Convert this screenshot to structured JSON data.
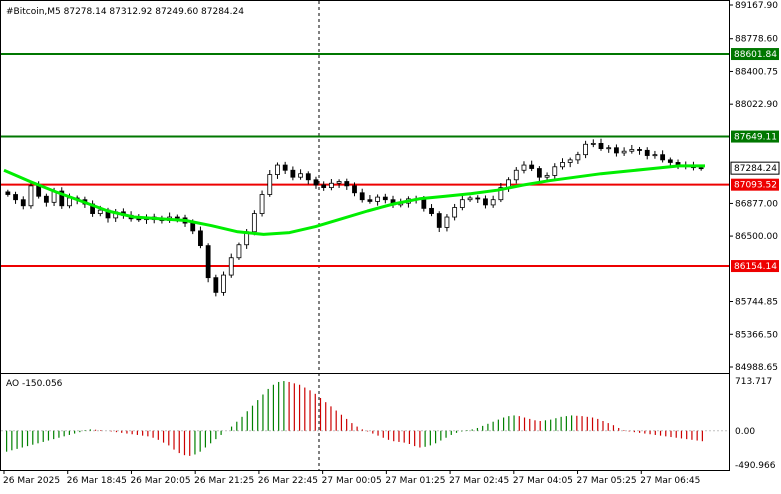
{
  "header": {
    "main_title": "#Bitcoin,M5  87278.14 87312.92 87249.60 87284.24",
    "ao_title": "AO -150.056"
  },
  "chart_data": [
    {
      "type": "candlestick",
      "symbol": "#Bitcoin",
      "timeframe": "M5",
      "ohlc": {
        "open": 87278.14,
        "high": 87312.92,
        "low": 87249.6,
        "close": 87284.24
      },
      "ylim": [
        84988.65,
        89167.9
      ],
      "y_ticks": [
        89167.9,
        88778.6,
        88400.75,
        88022.9,
        87649.11,
        87284.24,
        86877.0,
        86500.0,
        86154.14,
        85744.85,
        85366.5,
        84988.65
      ],
      "y_tick_labels": [
        "89167.90",
        "88778.60",
        "88400.75",
        "88022.90",
        "86877.00",
        "86500.00",
        "85744.85",
        "85366.50",
        "84988.65"
      ],
      "x_tick_labels": [
        "26 Mar 2025",
        "26 Mar 18:45",
        "26 Mar 20:05",
        "26 Mar 21:25",
        "26 Mar 22:45",
        "27 Mar 00:05",
        "27 Mar 01:25",
        "27 Mar 02:45",
        "27 Mar 04:05",
        "27 Mar 05:25",
        "27 Mar 06:45"
      ],
      "levels": [
        {
          "value": 88601.84,
          "label": "88601.84",
          "color": "#007700"
        },
        {
          "value": 87649.11,
          "label": "87649.11",
          "color": "#007700"
        },
        {
          "value": 87093.52,
          "label": "87093.52",
          "color": "#ee0000"
        },
        {
          "value": 86154.14,
          "label": "86154.14",
          "color": "#ee0000"
        }
      ],
      "current_price": {
        "value": 87284.24,
        "label": "87284.24"
      },
      "close_series": [
        86980,
        86920,
        86850,
        87080,
        86960,
        86890,
        87020,
        86850,
        86940,
        86920,
        86870,
        86760,
        86800,
        86710,
        86780,
        86740,
        86700,
        86690,
        86720,
        86690,
        86680,
        86720,
        86710,
        86650,
        86560,
        86390,
        86020,
        85850,
        86050,
        86250,
        86400,
        86550,
        86760,
        86980,
        87210,
        87320,
        87260,
        87180,
        87220,
        87150,
        87090,
        87060,
        87110,
        87130,
        87080,
        87000,
        86920,
        86900,
        86950,
        86920,
        86860,
        86880,
        86930,
        86920,
        86820,
        86760,
        86600,
        86720,
        86830,
        86920,
        86940,
        86930,
        86860,
        86920,
        87060,
        87150,
        87260,
        87320,
        87280,
        87180,
        87200,
        87300,
        87350,
        87380,
        87440,
        87560,
        87570,
        87510,
        87520,
        87460,
        87480,
        87500,
        87490,
        87430,
        87440,
        87380,
        87350,
        87320,
        87310,
        87290,
        87280
      ],
      "sma_series": [
        87260,
        87130,
        87010,
        86900,
        86790,
        86720,
        86700,
        86680,
        86620,
        86550,
        86520,
        86540,
        86610,
        86700,
        86790,
        86870,
        86930,
        86960,
        86990,
        87030,
        87090,
        87140,
        87180,
        87220,
        87250,
        87280,
        87310,
        87310
      ],
      "colors": {
        "bull": "#000000",
        "bear": "#000000",
        "sma": "#00ee00",
        "vline": "#000000"
      }
    },
    {
      "type": "bar",
      "name": "AO",
      "value": -150.056,
      "ylim": [
        -490.966,
        713.717
      ],
      "y_tick_labels": [
        "713.717",
        "0.00",
        "-490.966"
      ],
      "values": [
        -300,
        -280,
        -260,
        -240,
        -220,
        -200,
        -180,
        -160,
        -140,
        -120,
        -100,
        -80,
        -60,
        -40,
        -20,
        10,
        20,
        15,
        10,
        0,
        -10,
        -20,
        -30,
        -40,
        -50,
        -60,
        -70,
        -80,
        -100,
        -130,
        -170,
        -210,
        -270,
        -320,
        -350,
        -360,
        -340,
        -300,
        -240,
        -180,
        -120,
        -60,
        0,
        60,
        130,
        200,
        280,
        360,
        440,
        520,
        600,
        660,
        700,
        713,
        700,
        680,
        660,
        620,
        580,
        530,
        470,
        410,
        350,
        290,
        230,
        170,
        110,
        60,
        20,
        -10,
        -40,
        -70,
        -100,
        -130,
        -150,
        -160,
        -170,
        -190,
        -220,
        -240,
        -230,
        -210,
        -180,
        -140,
        -100,
        -60,
        -30,
        -10,
        10,
        20,
        40,
        70,
        100,
        130,
        160,
        190,
        210,
        220,
        210,
        190,
        170,
        150,
        140,
        150,
        160,
        180,
        200,
        210,
        220,
        215,
        210,
        200,
        190,
        170,
        140,
        110,
        80,
        40,
        10,
        -10,
        -20,
        -30,
        -40,
        -50,
        -60,
        -70,
        -80,
        -90,
        -100,
        -110,
        -120,
        -130,
        -140,
        -150
      ],
      "colors": {
        "up": "#008000",
        "down": "#cc0000",
        "zero": "#c0c0c0"
      }
    }
  ]
}
